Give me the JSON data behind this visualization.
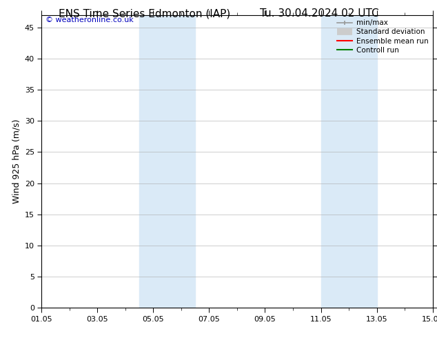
{
  "title_left": "ENS Time Series Edmonton (IAP)",
  "title_right": "Tu. 30.04.2024 02 UTC",
  "ylabel": "Wind 925 hPa (m/s)",
  "watermark": "© weatheronline.co.uk",
  "xtick_labels": [
    "01.05",
    "03.05",
    "05.05",
    "07.05",
    "09.05",
    "11.05",
    "13.05",
    "15.05"
  ],
  "xtick_positions": [
    0,
    2,
    4,
    6,
    8,
    10,
    12,
    14
  ],
  "xlim": [
    0,
    14
  ],
  "ylim": [
    0,
    47
  ],
  "ytick_positions": [
    0,
    5,
    10,
    15,
    20,
    25,
    30,
    35,
    40,
    45
  ],
  "ytick_labels": [
    "0",
    "5",
    "10",
    "15",
    "20",
    "25",
    "30",
    "35",
    "40",
    "45"
  ],
  "shaded_bands": [
    {
      "xstart": 3.5,
      "xend": 5.5,
      "color": "#daeaf7"
    },
    {
      "xstart": 10.0,
      "xend": 12.0,
      "color": "#daeaf7"
    }
  ],
  "bg_color": "#ffffff",
  "legend_items": [
    {
      "label": "min/max",
      "color": "#999999",
      "lw": 1.2,
      "style": "line_with_caps"
    },
    {
      "label": "Standard deviation",
      "color": "#cccccc",
      "lw": 7,
      "style": "thick_line"
    },
    {
      "label": "Ensemble mean run",
      "color": "#ff0000",
      "lw": 1.5,
      "style": "line"
    },
    {
      "label": "Controll run",
      "color": "#008000",
      "lw": 1.5,
      "style": "line"
    }
  ],
  "title_fontsize": 11,
  "axis_label_fontsize": 9,
  "tick_fontsize": 8,
  "legend_fontsize": 7.5,
  "watermark_fontsize": 8,
  "grid_color": "#aaaaaa",
  "grid_lw": 0.4
}
